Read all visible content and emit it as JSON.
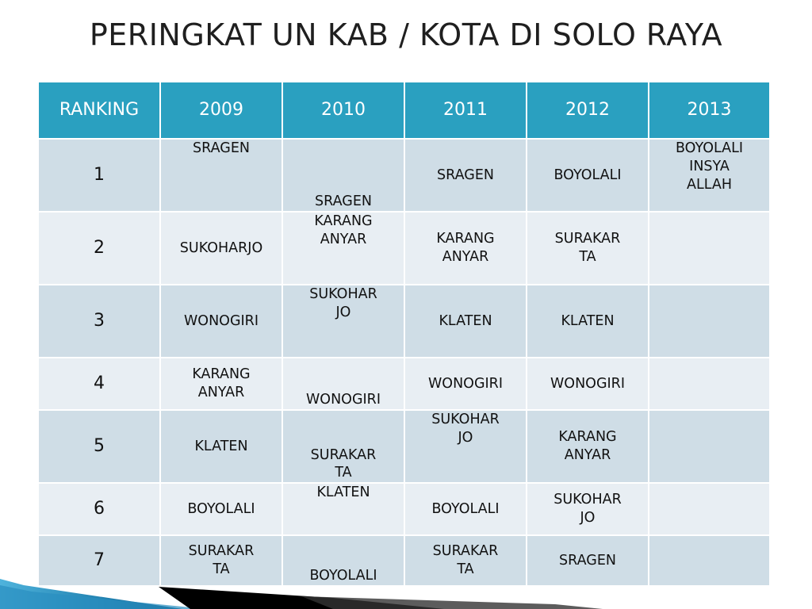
{
  "title": "PERINGKAT UN KAB / KOTA  DI SOLO RAYA",
  "table": {
    "headers": [
      "RANKING",
      "2009",
      "2010",
      "2011",
      "2012",
      "2013"
    ],
    "rows": [
      {
        "rank": "1",
        "cells": [
          "SRAGEN",
          "SRAGEN",
          "SRAGEN",
          "BOYOLALI",
          "BOYOLALI\nINSYA\nALLAH"
        ]
      },
      {
        "rank": "2",
        "cells": [
          "SUKOHARJO",
          "KARANG\nANYAR",
          "KARANG\nANYAR",
          "SURAKAR\nTA",
          ""
        ]
      },
      {
        "rank": "3",
        "cells": [
          "WONOGIRI",
          "SUKOHAR\nJO",
          "KLATEN",
          "KLATEN",
          ""
        ]
      },
      {
        "rank": "4",
        "cells": [
          "KARANG\nANYAR",
          "WONOGIRI",
          "WONOGIRI",
          "WONOGIRI",
          ""
        ]
      },
      {
        "rank": "5",
        "cells": [
          "KLATEN",
          "SURAKAR\nTA",
          "SUKOHAR\nJO",
          "KARANG\nANYAR",
          ""
        ]
      },
      {
        "rank": "6",
        "cells": [
          "BOYOLALI",
          "KLATEN",
          "BOYOLALI",
          "SUKOHAR\nJO",
          ""
        ]
      },
      {
        "rank": "7",
        "cells": [
          "SURAKAR\nTA",
          "BOYOLALI",
          "SURAKAR\nTA",
          "SRAGEN",
          ""
        ]
      }
    ]
  },
  "colors": {
    "header_bg": "#2aa0c0",
    "row_dark": "#cfdde6",
    "row_light": "#e8eef3",
    "accent_blue": "#1f7fae"
  }
}
